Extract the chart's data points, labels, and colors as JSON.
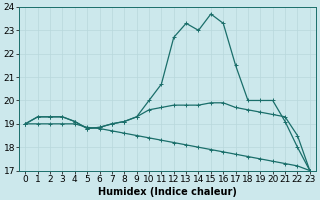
{
  "title": "",
  "xlabel": "Humidex (Indice chaleur)",
  "xlim": [
    -0.5,
    23.5
  ],
  "ylim": [
    17,
    24
  ],
  "yticks": [
    17,
    18,
    19,
    20,
    21,
    22,
    23,
    24
  ],
  "xticks": [
    0,
    1,
    2,
    3,
    4,
    5,
    6,
    7,
    8,
    9,
    10,
    11,
    12,
    13,
    14,
    15,
    16,
    17,
    18,
    19,
    20,
    21,
    22,
    23
  ],
  "bg_color": "#cce8ec",
  "line_color": "#1a6e6a",
  "grid_color": "#b8d8dc",
  "line1_y": [
    19.0,
    19.3,
    19.3,
    19.3,
    19.1,
    18.8,
    18.85,
    19.0,
    19.1,
    19.3,
    20.0,
    20.7,
    22.7,
    23.3,
    23.0,
    23.7,
    23.3,
    21.5,
    20.0,
    20.0,
    20.0,
    19.1,
    18.0,
    17.0
  ],
  "line2_y": [
    19.0,
    19.3,
    19.3,
    19.3,
    19.1,
    18.8,
    18.85,
    19.0,
    19.1,
    19.3,
    19.6,
    19.7,
    19.8,
    19.8,
    19.8,
    19.9,
    19.9,
    19.7,
    19.6,
    19.5,
    19.4,
    19.3,
    18.5,
    17.0
  ],
  "line3_y": [
    19.0,
    19.0,
    19.0,
    19.0,
    19.0,
    18.85,
    18.8,
    18.7,
    18.6,
    18.5,
    18.4,
    18.3,
    18.2,
    18.1,
    18.0,
    17.9,
    17.8,
    17.7,
    17.6,
    17.5,
    17.4,
    17.3,
    17.2,
    17.0
  ],
  "marker": "+",
  "markersize": 3,
  "linewidth": 0.9,
  "xlabel_fontsize": 7,
  "tick_fontsize": 6.5
}
